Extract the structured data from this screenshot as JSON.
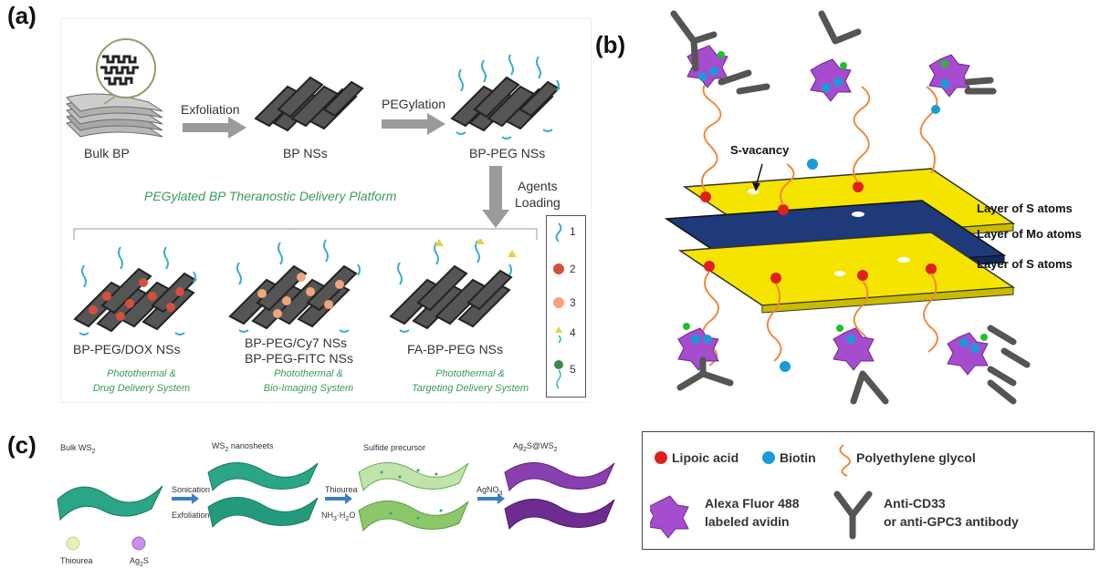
{
  "panel_a": {
    "label": "(a)",
    "bulk_label": "Bulk BP",
    "step1": "Exfoliation",
    "ns_label": "BP NSs",
    "step2": "PEGylation",
    "peg_label": "BP-PEG NSs",
    "agents1": "Agents",
    "agents2": "Loading",
    "platform": "PEGylated BP Theranostic Delivery Platform",
    "dox_label": "BP-PEG/DOX NSs",
    "cy7_label": "BP-PEG/Cy7 NSs",
    "fitc_label": "BP-PEG-FITC NSs",
    "fa_label": "FA-BP-PEG NSs",
    "sys1a": "Photothermal &",
    "sys1b": "Drug Delivery System",
    "sys2a": "Photothermal &",
    "sys2b": "Bio-Imaging System",
    "sys3a": "Photothermal &",
    "sys3b": "Targeting Delivery System",
    "key": [
      "1",
      "2",
      "3",
      "4",
      "5"
    ]
  },
  "panel_b": {
    "label": "(b)",
    "vacancy": "S-vacancy",
    "layer1": "Layer of S atoms",
    "layer2": "Layer of Mo atoms",
    "layer3": "Layer of S atoms"
  },
  "panel_c": {
    "label": "(c)",
    "bulk": "Bulk WS",
    "bulk_sub": "2",
    "nano": "WS",
    "nano_sub": "2",
    "nano_rest": " nanosheets",
    "precursor": "Sulfide precursor",
    "ag": "Ag",
    "ag_sub": "2",
    "ag_mid": "S@WS",
    "ag_sub2": "2",
    "sonication": "Sonication",
    "exfoliation": "Exfoliation",
    "thiourea": "Thiourea",
    "nh3": "NH",
    "nh3_sub": "3",
    "nh3_rest": "·H",
    "nh3_sub2": "2",
    "nh3_end": "O",
    "agno": "AgNO",
    "agno_sub": "3",
    "leg_thiourea": "Thiourea",
    "leg_ag2s": "Ag",
    "leg_ag2s_sub": "2",
    "leg_ag2s_end": "S"
  },
  "legend": {
    "lipoic": "Lipoic acid",
    "biotin": "Biotin",
    "peg": "Polyethylene glycol",
    "alexa1": "Alexa Fluor 488",
    "alexa2": "labeled avidin",
    "anti1": "Anti-CD33",
    "anti2": "or anti-GPC3 antibody"
  },
  "colors": {
    "sulfur_layer": "#f5e400",
    "mo_layer": "#1f3a7a",
    "lipoic": "#e0201a",
    "biotin": "#1a9bd6",
    "peg": "#f08a3c",
    "avidin": "#a64ccf",
    "antibody": "#555555",
    "ws2": "#2aa585",
    "ag2s": "#8a3fb0",
    "green_text": "#3a9a5a"
  }
}
